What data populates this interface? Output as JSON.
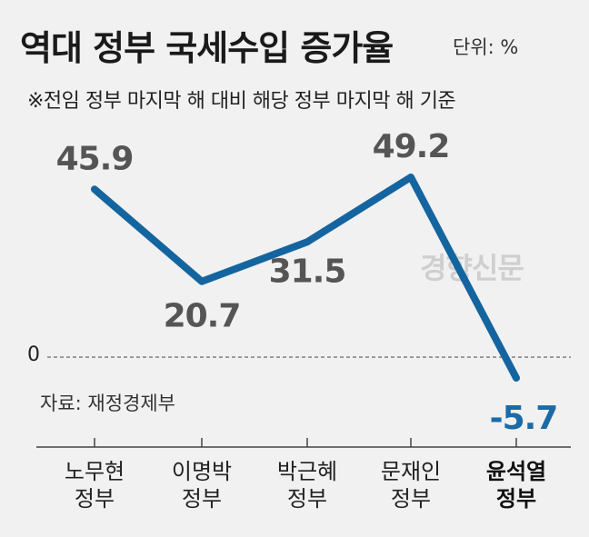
{
  "header": {
    "title": "역대 정부 국세수입 증가율",
    "unit": "단위: %",
    "note": "※전임 정부 마지막 해 대비 해당 정부 마지막 해 기준"
  },
  "source": "자료: 재정경제부",
  "watermark": "경향신문",
  "zero_label": "0",
  "colors": {
    "line": "#14659f",
    "highlight_label": "#1c6aa6",
    "label": "#555555",
    "axis": "#444444"
  },
  "categories": [
    {
      "line1": "노무현",
      "line2": "정부"
    },
    {
      "line1": "이명박",
      "line2": "정부"
    },
    {
      "line1": "박근혜",
      "line2": "정부"
    },
    {
      "line1": "문재인",
      "line2": "정부"
    },
    {
      "line1": "윤석열",
      "line2": "정부"
    }
  ],
  "chart_data": {
    "type": "line",
    "title": "역대 정부 국세수입 증가율",
    "categories": [
      "노무현 정부",
      "이명박 정부",
      "박근혜 정부",
      "문재인 정부",
      "윤석열 정부"
    ],
    "values": [
      45.9,
      20.7,
      31.5,
      49.2,
      -5.7
    ],
    "data_labels": [
      "45.9",
      "20.7",
      "31.5",
      "49.2",
      "-5.7"
    ],
    "ylabel": "단위: %",
    "ylim": [
      -5.7,
      49.2
    ],
    "grid": false,
    "legend": "none"
  }
}
